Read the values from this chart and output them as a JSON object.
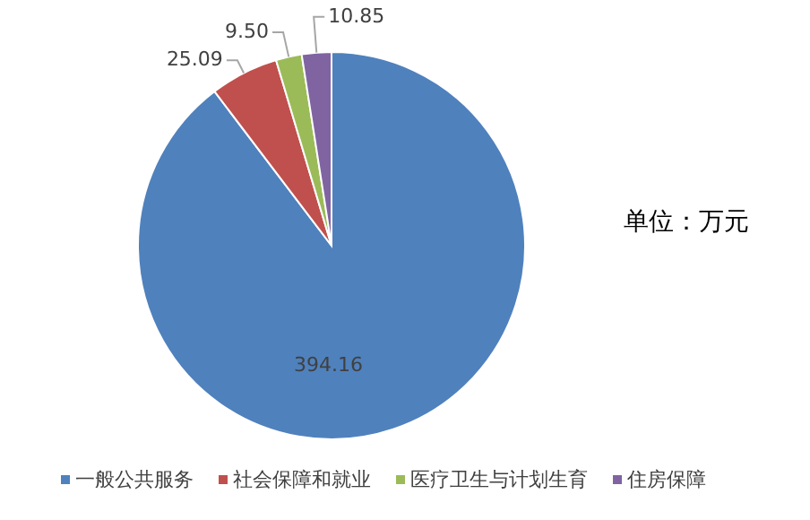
{
  "chart_data": {
    "type": "pie",
    "categories": [
      "一般公共服务",
      "社会保障和就业",
      "医疗卫生与计划生育",
      "住房保障"
    ],
    "values": [
      394.16,
      25.09,
      9.5,
      10.85
    ],
    "value_labels": [
      "394.16",
      "25.09",
      "9.50",
      "10.85"
    ],
    "colors": [
      "#4f81bd",
      "#c0504d",
      "#9bbb59",
      "#8064a2"
    ],
    "data_labels": true,
    "legend": "bottom",
    "annotations": [
      "单位：万元"
    ]
  }
}
